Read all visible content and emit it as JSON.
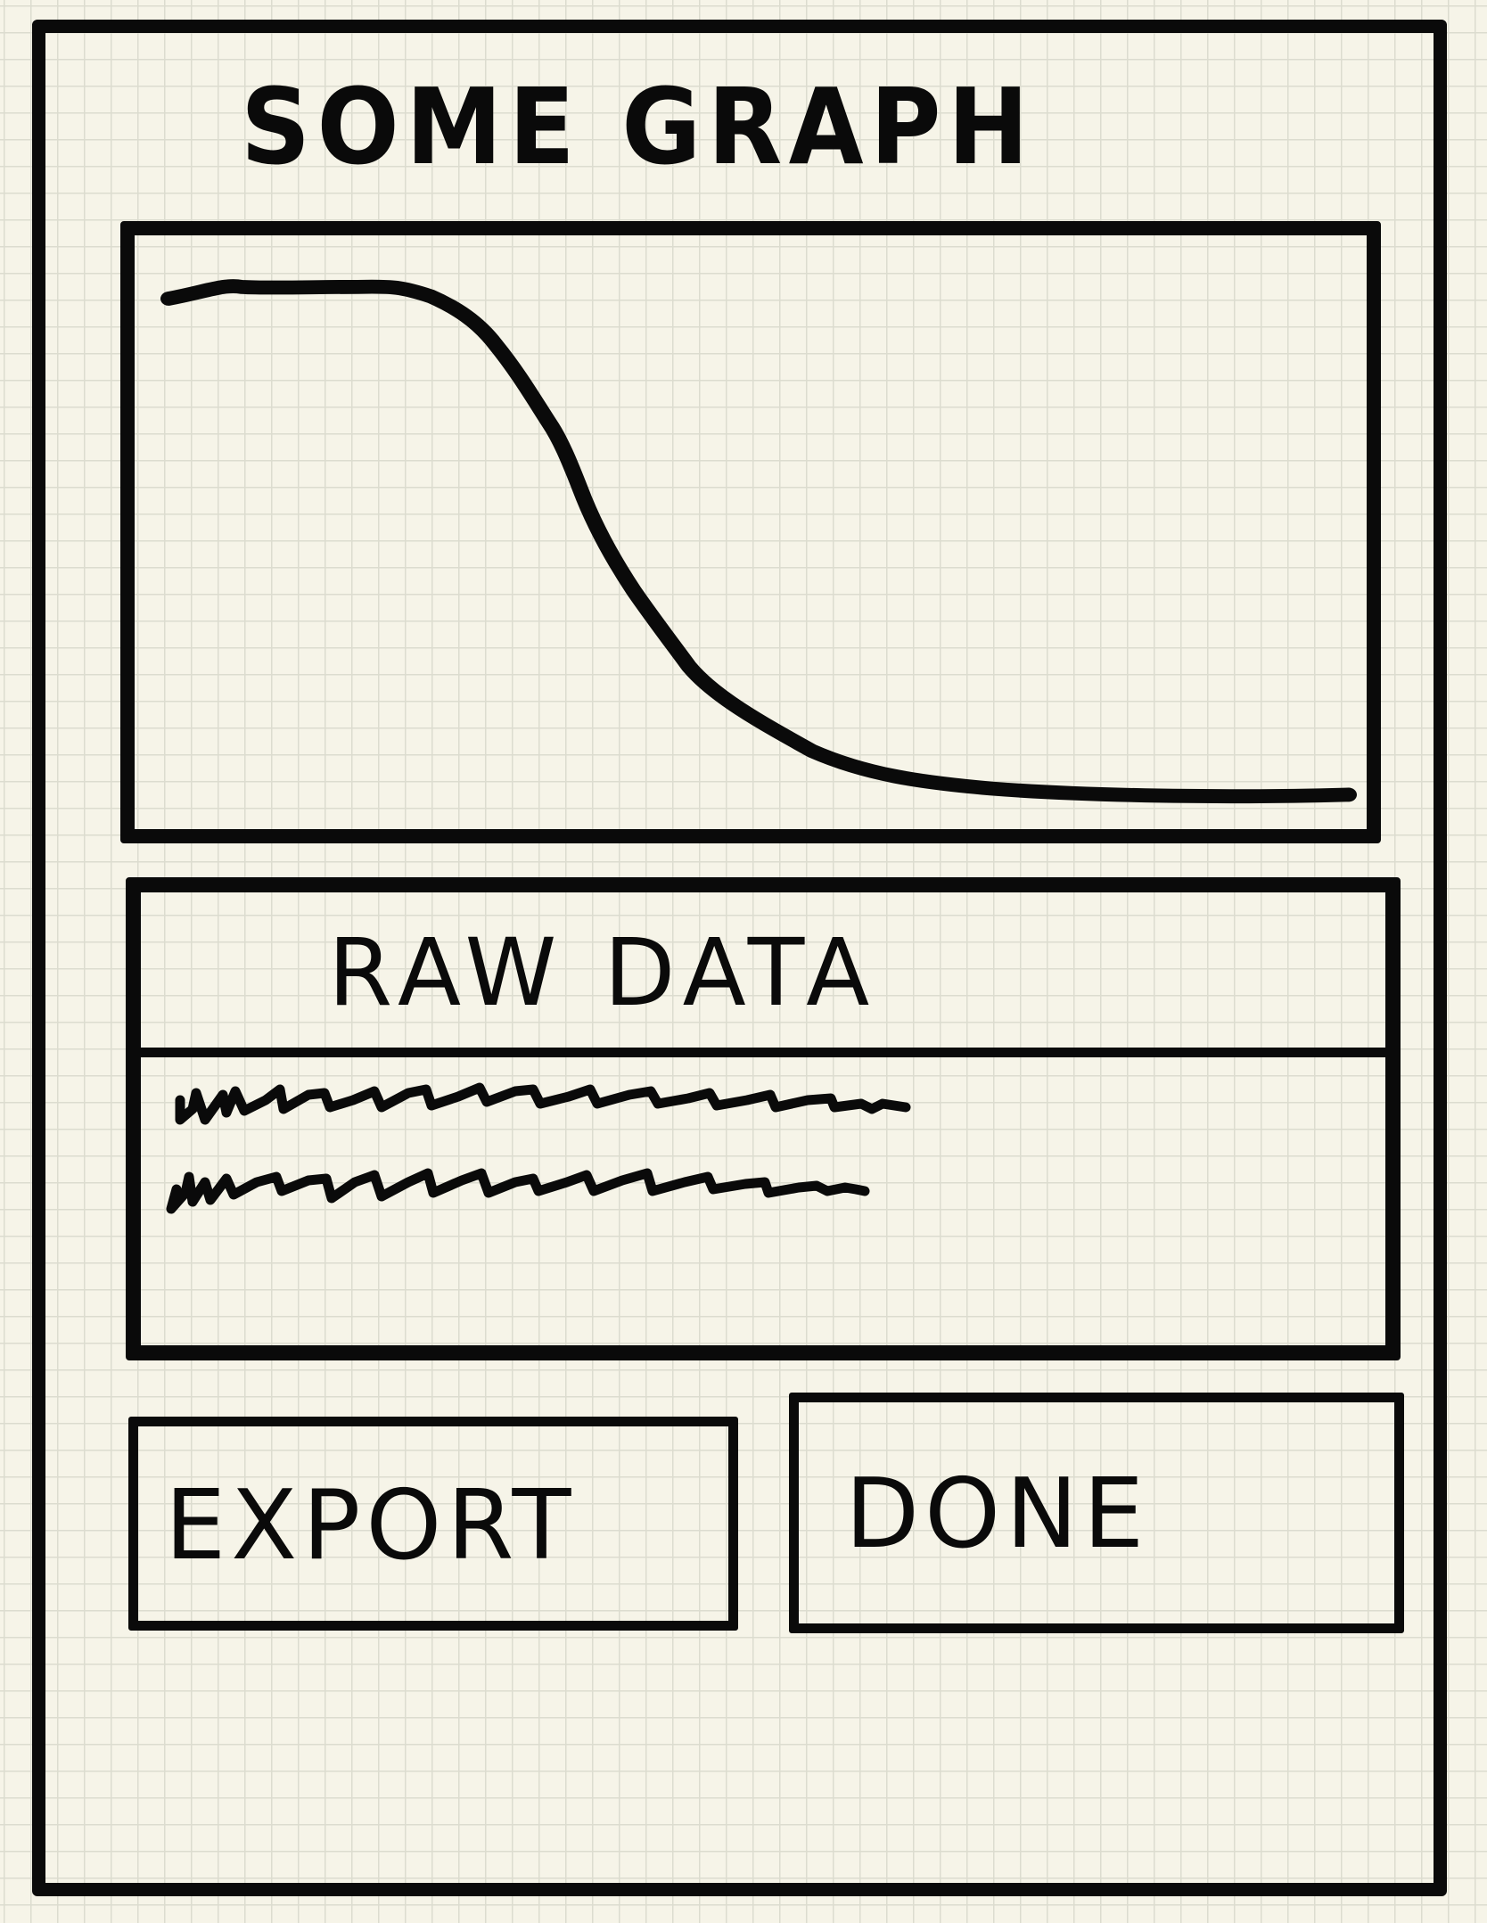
{
  "screen": {
    "title": "SOME GRAPH"
  },
  "graph": {
    "type": "line",
    "shape": "decreasing sigmoid curve, no axes or labels",
    "colors": {
      "line": "#0a0a0a",
      "background": "#f6f4e8"
    }
  },
  "raw_data": {
    "header": "RAW DATA",
    "content": "two lines of placeholder scribble text"
  },
  "buttons": {
    "export_label": "EXPORT",
    "done_label": "DONE"
  }
}
